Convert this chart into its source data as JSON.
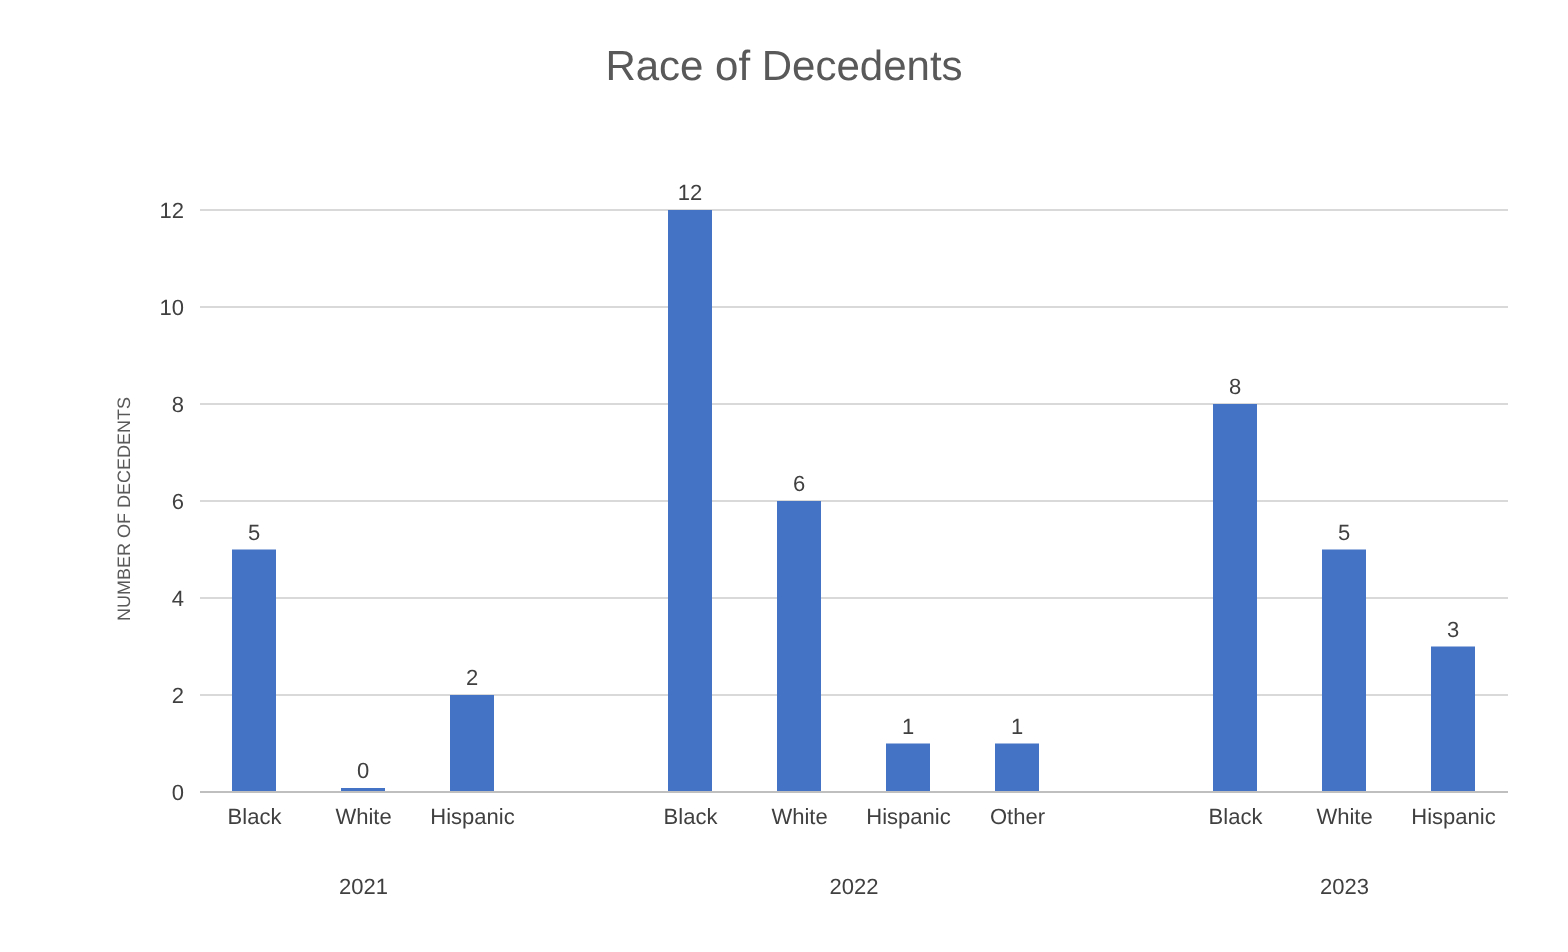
{
  "chart_data": {
    "type": "bar",
    "title": "Race of Decedents",
    "ylabel": "NUMBER OF DECEDENTS",
    "categories": [
      "Black",
      "White",
      "Hispanic",
      null,
      "Black",
      "White",
      "Hispanic",
      "Other",
      null,
      "Black",
      "White",
      "Hispanic"
    ],
    "values": [
      5,
      0,
      2,
      null,
      12,
      6,
      1,
      1,
      null,
      8,
      5,
      3
    ],
    "color": "#4472c4",
    "annotations": [
      "2021",
      "2022",
      "2023"
    ],
    "ylim": [
      0,
      12
    ],
    "yticks": [
      0,
      2,
      4,
      6,
      8,
      10,
      12
    ],
    "grid": "y",
    "data_labels": true,
    "legend": false
  }
}
